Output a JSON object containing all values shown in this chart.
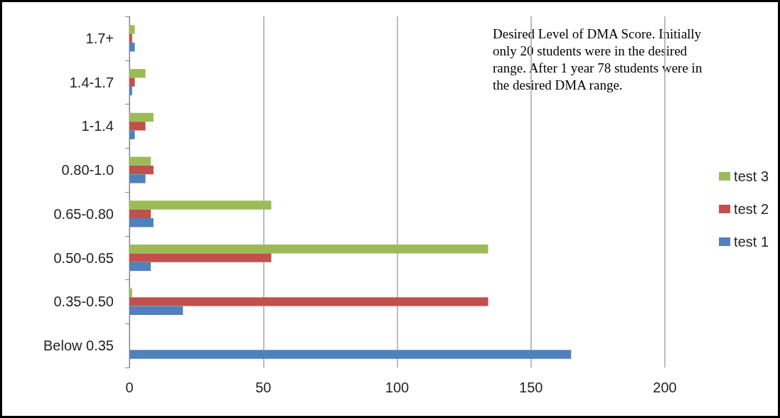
{
  "chart_data": {
    "type": "bar",
    "orientation": "horizontal",
    "categories": [
      "1.7+",
      "1.4-1.7",
      "1-1.4",
      "0.80-1.0",
      "0.65-0.80",
      "0.50-0.65",
      "0.35-0.50",
      "Below 0.35"
    ],
    "series": [
      {
        "name": "test 3",
        "color": "#9bbb59",
        "values": [
          2,
          6,
          9,
          8,
          53,
          134,
          1,
          0
        ]
      },
      {
        "name": "test 2",
        "color": "#c0504d",
        "values": [
          1,
          2,
          6,
          9,
          8,
          53,
          134,
          0
        ]
      },
      {
        "name": "test 1",
        "color": "#4f81bd",
        "values": [
          2,
          1,
          2,
          6,
          9,
          8,
          20,
          165
        ]
      }
    ],
    "xlim": [
      0,
      200
    ],
    "xticks": [
      0,
      50,
      100,
      150,
      200
    ],
    "grid": "x",
    "legend": "right",
    "annotations": [
      "Desired Level of DMA Score. Initially only 20 students were in the desired range. After 1 year 78 students were in the desired DMA range."
    ]
  }
}
